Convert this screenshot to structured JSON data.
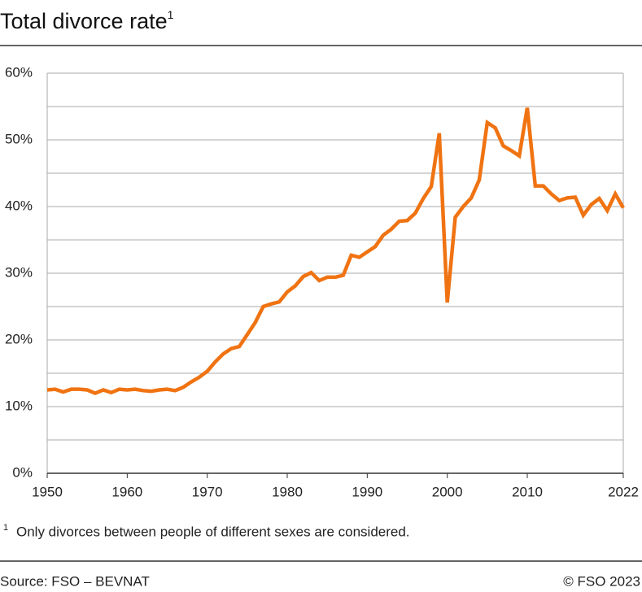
{
  "chart_data": {
    "type": "line",
    "title": "Total divorce rate",
    "title_note": "1",
    "x": [
      1950,
      1951,
      1952,
      1953,
      1954,
      1955,
      1956,
      1957,
      1958,
      1959,
      1960,
      1961,
      1962,
      1963,
      1964,
      1965,
      1966,
      1967,
      1968,
      1969,
      1970,
      1971,
      1972,
      1973,
      1974,
      1975,
      1976,
      1977,
      1978,
      1979,
      1980,
      1981,
      1982,
      1983,
      1984,
      1985,
      1986,
      1987,
      1988,
      1989,
      1990,
      1991,
      1992,
      1993,
      1994,
      1995,
      1996,
      1997,
      1998,
      1999,
      2000,
      2001,
      2002,
      2003,
      2004,
      2005,
      2006,
      2007,
      2008,
      2009,
      2010,
      2011,
      2012,
      2013,
      2014,
      2015,
      2016,
      2017,
      2018,
      2019,
      2020,
      2021,
      2022
    ],
    "series": [
      {
        "name": "Total divorce rate",
        "color": "#f07312",
        "values": [
          12.5,
          12.6,
          12.2,
          12.6,
          12.6,
          12.5,
          12.0,
          12.5,
          12.1,
          12.6,
          12.5,
          12.6,
          12.4,
          12.3,
          12.5,
          12.6,
          12.4,
          12.9,
          13.7,
          14.4,
          15.3,
          16.7,
          17.9,
          18.7,
          19.0,
          20.8,
          22.6,
          25.0,
          25.4,
          25.7,
          27.2,
          28.1,
          29.5,
          30.1,
          28.9,
          29.4,
          29.4,
          29.7,
          32.7,
          32.4,
          33.2,
          34.0,
          35.7,
          36.6,
          37.8,
          37.9,
          39.0,
          41.2,
          43.0,
          51.0,
          25.6,
          38.4,
          40.0,
          41.3,
          44.0,
          52.6,
          51.8,
          49.1,
          48.4,
          47.6,
          54.8,
          43.1,
          43.1,
          41.9,
          40.9,
          41.3,
          41.4,
          38.7,
          40.3,
          41.2,
          39.4,
          41.9,
          39.8
        ]
      }
    ],
    "xlim": [
      1950,
      2022
    ],
    "xticks": [
      1950,
      1960,
      1970,
      1980,
      1990,
      2000,
      2010,
      2022
    ],
    "ylim": [
      0,
      60
    ],
    "yticks": [
      {
        "value": 0,
        "label": "0%"
      },
      {
        "value": 10,
        "label": "10%"
      },
      {
        "value": 20,
        "label": "20%"
      },
      {
        "value": 30,
        "label": "30%"
      },
      {
        "value": 40,
        "label": "40%"
      },
      {
        "value": 50,
        "label": "50%"
      },
      {
        "value": 60,
        "label": "60%"
      }
    ],
    "y_minor_grid": [
      5,
      15,
      25,
      35,
      45,
      55
    ],
    "grid": true,
    "footnote_marker": "1",
    "footnote": "Only divorces between people of different sexes are considered.",
    "source": "Source: FSO – BEVNAT",
    "copyright": "© FSO 2023"
  }
}
